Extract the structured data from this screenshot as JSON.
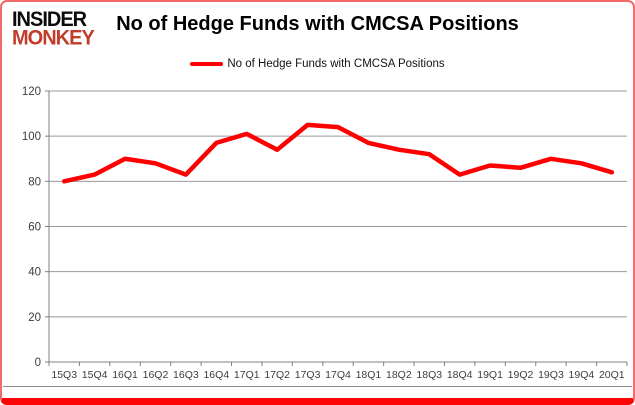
{
  "brand": {
    "line1": "INSIDER",
    "line2": "MONKEY",
    "insider_color": "#0c0c0c",
    "monkey_color": "#c23c2a"
  },
  "header": {
    "title": "No of Hedge Funds with CMCSA Positions"
  },
  "legend": {
    "label": "No of Hedge Funds with CMCSA Positions",
    "line_color": "#fe0000"
  },
  "chart_data": {
    "type": "line",
    "title": "No of Hedge Funds with CMCSA Positions",
    "categories": [
      "15Q3",
      "15Q4",
      "16Q1",
      "16Q2",
      "16Q3",
      "16Q4",
      "17Q1",
      "17Q2",
      "17Q3",
      "17Q4",
      "18Q1",
      "18Q2",
      "18Q3",
      "18Q4",
      "19Q1",
      "19Q2",
      "19Q3",
      "19Q4",
      "20Q1"
    ],
    "series": [
      {
        "name": "No of Hedge Funds with CMCSA Positions",
        "color": "#fe0000",
        "values": [
          80,
          83,
          90,
          88,
          83,
          97,
          101,
          94,
          105,
          104,
          97,
          94,
          92,
          83,
          87,
          86,
          90,
          88,
          84
        ]
      }
    ],
    "xlabel": "",
    "ylabel": "",
    "ylim": [
      0,
      120
    ],
    "ytick_interval": 20,
    "yticks": [
      0,
      20,
      40,
      60,
      80,
      100,
      120
    ],
    "grid": true,
    "legend_position": "top-center",
    "gridline_color": "#9a9a9a",
    "axis_color": "#808080",
    "tick_text_color": "#3d3d3d"
  },
  "frame": {
    "border_color": "#f26a6a",
    "bottom_bar_color": "#fb0505"
  }
}
